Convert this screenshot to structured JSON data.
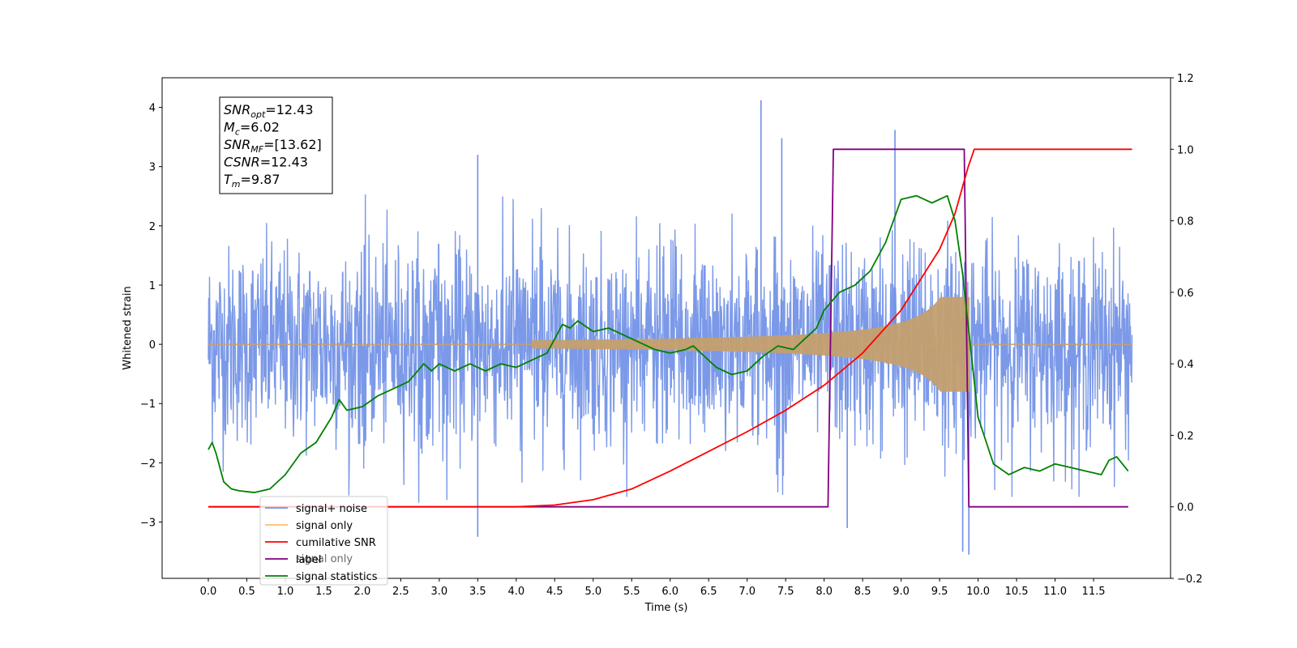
{
  "chart_data": {
    "type": "line",
    "title": "",
    "xlabel": "Time (s)",
    "ylabel": "Whitened strain",
    "ylabel_right": "",
    "xlim": [
      -0.6,
      12.5
    ],
    "ylim": [
      -3.95,
      4.5
    ],
    "ylim_right": [
      -0.2,
      1.2
    ],
    "xticks": [
      "0.0",
      "0.5",
      "1.0",
      "1.5",
      "2.0",
      "2.5",
      "3.0",
      "3.5",
      "4.0",
      "4.5",
      "5.0",
      "5.5",
      "6.0",
      "6.5",
      "7.0",
      "7.5",
      "8.0",
      "8.5",
      "9.0",
      "9.5",
      "10.0",
      "10.5",
      "11.0",
      "11.5"
    ],
    "yticks_left": [
      "−3",
      "−2",
      "−1",
      "0",
      "1",
      "2",
      "3",
      "4"
    ],
    "yticks_right": [
      "−0.2",
      "0.0",
      "0.2",
      "0.4",
      "0.6",
      "0.8",
      "1.0",
      "1.2"
    ],
    "grid": false,
    "legend_position": "lower-left",
    "info_box": {
      "lines": [
        {
          "var": "SNR",
          "sub": "opt",
          "value": "=12.43"
        },
        {
          "var": "M",
          "sub": "c",
          "value": "=6.02"
        },
        {
          "var": "SNR",
          "sub": "MF",
          "value": "=[13.62]"
        },
        {
          "var": "CSNR",
          "sub": "",
          "value": "=12.43"
        },
        {
          "var": "T",
          "sub": "m",
          "value": "=9.87"
        }
      ]
    },
    "legend": [
      {
        "label": "signal+ noise",
        "color": "#7090e6"
      },
      {
        "label": "signal only",
        "color": "#ffc070"
      },
      {
        "label": "cumilative SNR",
        "color": "#ff0000"
      },
      {
        "label": "label",
        "color": "#800080"
      },
      {
        "label": "signal statistics",
        "color": "#008000"
      }
    ],
    "legend_hidden_text": "signal only",
    "series": [
      {
        "name": "signal+ noise",
        "axis": "left",
        "color": "#7090e6",
        "description_range": [
          0,
          12
        ],
        "peaks": [
          {
            "x": 7.18,
            "y": 4.12
          },
          {
            "x": 8.92,
            "y": 3.62
          },
          {
            "x": 7.45,
            "y": 3.48
          },
          {
            "x": 3.5,
            "y": 3.2
          },
          {
            "x": 9.88,
            "y": -3.55
          },
          {
            "x": 9.8,
            "y": -3.5
          },
          {
            "x": 3.5,
            "y": -3.25
          },
          {
            "x": 8.3,
            "y": -3.1
          }
        ]
      },
      {
        "name": "signal only",
        "axis": "left",
        "color": "#c8a070",
        "x_range": [
          0,
          12
        ],
        "envelope_end_x": 9.87,
        "envelope_end_amp": 0.8
      },
      {
        "name": "cumilative SNR",
        "axis": "right",
        "color": "#ff0000",
        "x": [
          0,
          4.0,
          4.5,
          5.0,
          5.5,
          6.0,
          6.5,
          7.0,
          7.5,
          8.0,
          8.5,
          9.0,
          9.5,
          9.7,
          9.87,
          9.95,
          12.0
        ],
        "y": [
          0.0,
          0.0,
          0.005,
          0.02,
          0.05,
          0.1,
          0.155,
          0.21,
          0.27,
          0.34,
          0.43,
          0.55,
          0.72,
          0.82,
          0.95,
          1.0,
          1.0
        ]
      },
      {
        "name": "label",
        "axis": "right",
        "color": "#800080",
        "x": [
          0,
          8.05,
          8.12,
          9.82,
          9.88,
          11.95
        ],
        "y": [
          0.0,
          0.0,
          1.0,
          1.0,
          0.0,
          0.0
        ]
      },
      {
        "name": "signal statistics",
        "axis": "right",
        "color": "#008000",
        "x": [
          0.0,
          0.05,
          0.1,
          0.2,
          0.3,
          0.4,
          0.6,
          0.8,
          1.0,
          1.1,
          1.2,
          1.4,
          1.6,
          1.7,
          1.8,
          2.0,
          2.2,
          2.4,
          2.6,
          2.8,
          2.9,
          3.0,
          3.2,
          3.4,
          3.6,
          3.8,
          4.0,
          4.2,
          4.4,
          4.6,
          4.7,
          4.8,
          5.0,
          5.2,
          5.4,
          5.6,
          5.8,
          6.0,
          6.2,
          6.3,
          6.5,
          6.6,
          6.8,
          7.0,
          7.2,
          7.4,
          7.6,
          7.8,
          7.9,
          8.0,
          8.2,
          8.4,
          8.6,
          8.8,
          9.0,
          9.2,
          9.4,
          9.6,
          9.7,
          9.8,
          9.85,
          9.9,
          10.0,
          10.2,
          10.4,
          10.6,
          10.8,
          11.0,
          11.2,
          11.4,
          11.6,
          11.7,
          11.8,
          11.95
        ],
        "y": [
          0.16,
          0.18,
          0.15,
          0.07,
          0.05,
          0.045,
          0.04,
          0.05,
          0.09,
          0.12,
          0.15,
          0.18,
          0.25,
          0.3,
          0.27,
          0.28,
          0.31,
          0.33,
          0.35,
          0.4,
          0.38,
          0.4,
          0.38,
          0.4,
          0.38,
          0.4,
          0.39,
          0.41,
          0.43,
          0.51,
          0.5,
          0.52,
          0.49,
          0.5,
          0.48,
          0.46,
          0.44,
          0.43,
          0.44,
          0.45,
          0.41,
          0.39,
          0.37,
          0.38,
          0.42,
          0.45,
          0.44,
          0.48,
          0.5,
          0.55,
          0.6,
          0.62,
          0.66,
          0.74,
          0.86,
          0.87,
          0.85,
          0.87,
          0.8,
          0.65,
          0.55,
          0.45,
          0.25,
          0.12,
          0.09,
          0.11,
          0.1,
          0.12,
          0.11,
          0.1,
          0.09,
          0.13,
          0.14,
          0.1
        ]
      }
    ]
  }
}
